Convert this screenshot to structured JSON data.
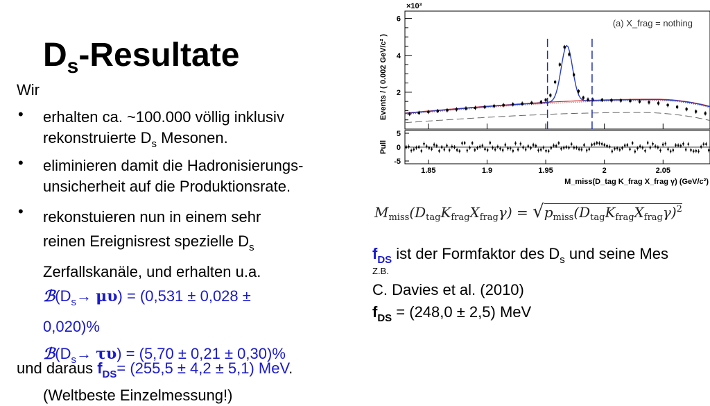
{
  "slide": {
    "title_main": "D",
    "title_sub": "s",
    "title_rest": "-Resultate",
    "intro": "Wir",
    "bullet_1_line1": "erhalten ca. ~100.000 völlig inklusiv",
    "bullet_1_line2a": "rekonstruierte D",
    "bullet_1_line2_sub": "s",
    "bullet_1_line2b": " Mesonen.",
    "bullet_2_line1": "eliminieren damit die Hadronisierungs-",
    "bullet_2_line2": "unsicherheit auf die Produktionsrate.",
    "bullet_3_line1": "rekonstuieren nun in einem sehr",
    "bullet_3_line2a": "reinen Ereignisrest spezielle D",
    "bullet_3_line2_sub": "s",
    "bullet_3_line3": "Zerfallskanäle, und erhalten u.a.",
    "br1_B": "ℬ",
    "br1_a": "(D",
    "br1_sub": "s",
    "br1_arrow": "→ ",
    "br1_particles": "μυ",
    "br1_b": ") = (0,531 ± 0,028 ±",
    "br1_line2": "0,020)%",
    "br2_B": "ℬ",
    "br2_a": "(D",
    "br2_sub": "s",
    "br2_arrow": "→ ",
    "br2_particles": "τυ",
    "br2_b": ") = (5,70  ± 0,21 ± 0,30)%",
    "conclusion_a": "und daraus ",
    "conclusion_f": "f",
    "conclusion_fsub": "DS",
    "conclusion_b": "= (255,5 ± 4,2 ± 5,1) MeV",
    "conclusion_dot": ".",
    "conclusion_line2": "(Weltbeste Einzelmessung!)",
    "formula": "M_miss(D_tag K_frag X_frag γ) = √ p_miss(D_tag K_frag X_frag γ)²",
    "formula_display_left": "M",
    "formula_display_left_sub": "miss",
    "formula_display_mid": "(D",
    "formula_display_tag": "tag",
    "formula_display_K": "K",
    "formula_display_frag": "frag",
    "formula_display_X": "X",
    "formula_display_gamma": "γ) = ",
    "formula_display_p": "p",
    "formula_display_close": "γ)",
    "formula_display_sq": "2",
    "right_f": "f",
    "right_fsub": "DS",
    "right_text_a": " ist der Formfaktor des D",
    "right_text_sub": "s",
    "right_text_b": " und seine Mes",
    "right_zb": "Z.B.",
    "right_ref": "C. Davies et al. (2010)",
    "right_val_f": "f",
    "right_val_sub": "DS",
    "right_val": " = (248,0 ± 2,5) MeV"
  },
  "colors": {
    "blue_text": "#1a1acd",
    "fit_blue": "#2a3fbf",
    "signal_red": "#d42020"
  },
  "chart_data": {
    "type": "scatter",
    "multiplier_label": "×10³",
    "ylabel": "Events / ( 0.002 GeV/c² )",
    "pull_ylabel": "Pull",
    "xlabel": "M_miss(D_tag K_frag X_frag γ) (GeV/c²)",
    "annotation": "(a) X_frag = nothing",
    "xlim": [
      1.83,
      2.09
    ],
    "ylim": [
      0,
      6.4
    ],
    "pull_ylim": [
      -6,
      6
    ],
    "x_ticks": [
      "1.85",
      "1.9",
      "1.95",
      "2",
      "2.05"
    ],
    "x_tick_values": [
      1.85,
      1.9,
      1.95,
      2.0,
      2.05
    ],
    "y_ticks": [
      "2",
      "4",
      "6"
    ],
    "y_tick_values": [
      2,
      4,
      6
    ],
    "pull_ticks": [
      "5",
      "0",
      "-5"
    ],
    "pull_tick_values": [
      5,
      0,
      -5
    ],
    "signal_window": [
      1.9515,
      1.9895
    ],
    "signal_peak": {
      "mean": 1.968,
      "sigma": 0.0048,
      "amplitude": 3.05
    },
    "background_start": 0.85,
    "background_peak": 1.6,
    "x": [
      1.834,
      1.842,
      1.85,
      1.858,
      1.866,
      1.874,
      1.882,
      1.89,
      1.898,
      1.906,
      1.914,
      1.922,
      1.93,
      1.938,
      1.946,
      1.95,
      1.954,
      1.958,
      1.962,
      1.966,
      1.97,
      1.974,
      1.978,
      1.982,
      1.986,
      1.99,
      1.998,
      2.006,
      2.014,
      2.022,
      2.03,
      2.038,
      2.046,
      2.054,
      2.062,
      2.07,
      2.078,
      2.086
    ],
    "y": [
      0.82,
      0.88,
      0.93,
      0.98,
      1.02,
      1.07,
      1.12,
      1.15,
      1.2,
      1.25,
      1.3,
      1.34,
      1.38,
      1.42,
      1.47,
      1.58,
      1.83,
      2.55,
      3.5,
      4.45,
      4.05,
      2.95,
      2.05,
      1.7,
      1.6,
      1.6,
      1.58,
      1.56,
      1.55,
      1.53,
      1.5,
      1.45,
      1.4,
      1.3,
      1.2,
      1.08,
      0.95,
      0.85
    ]
  }
}
